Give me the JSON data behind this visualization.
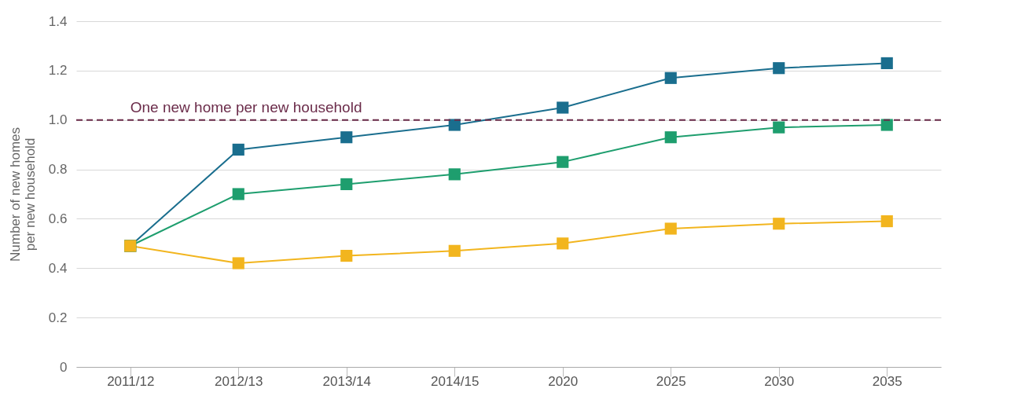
{
  "chart_data": {
    "type": "line",
    "ylabel": "Number of new homes per new household",
    "categories": [
      "2011/12",
      "2012/13",
      "2013/14",
      "2014/15",
      "2020",
      "2025",
      "2030",
      "2035"
    ],
    "series": [
      {
        "color": "#1a6e8e",
        "values": [
          0.49,
          0.88,
          0.93,
          0.98,
          1.05,
          1.17,
          1.21,
          1.23
        ]
      },
      {
        "color": "#1e9e6e",
        "values": [
          0.49,
          0.7,
          0.74,
          0.78,
          0.83,
          0.93,
          0.97,
          0.98
        ]
      },
      {
        "color": "#f2b51e",
        "values": [
          0.49,
          0.42,
          0.45,
          0.47,
          0.5,
          0.56,
          0.58,
          0.59
        ]
      }
    ],
    "ylim": [
      0,
      1.4
    ],
    "yticks": [
      0,
      {
        "value": 0.2,
        "label": "0.2"
      },
      {
        "value": 0.4,
        "label": "0.4"
      },
      {
        "value": 0.6,
        "label": "0.6"
      },
      {
        "value": 0.8,
        "label": "0.8"
      },
      {
        "value": 1,
        "label": "1.0"
      },
      {
        "value": 1.2,
        "label": "1.2"
      },
      {
        "value": 1.4,
        "label": "1.4"
      }
    ],
    "grid": "y",
    "marker": "square",
    "line_style": "solid",
    "legend": false,
    "ref_lines": [
      {
        "axis": "y",
        "value": 1.0,
        "label": "One new home per new household",
        "color": "#6b2c4a",
        "line_style": "dashed"
      }
    ]
  }
}
